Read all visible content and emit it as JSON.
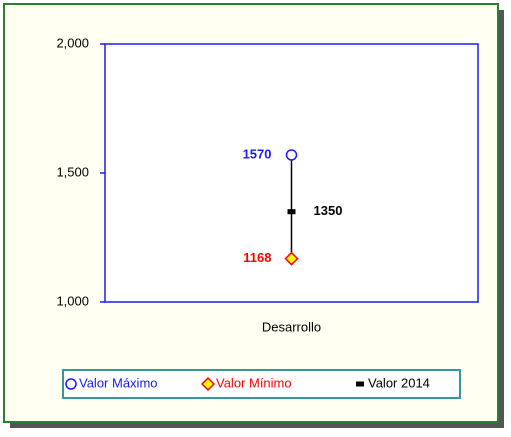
{
  "chart_data": {
    "type": "highlow",
    "categories": [
      "Desarrollo"
    ],
    "series": [
      {
        "name": "Valor Máximo",
        "color": "#1a1aff",
        "values": [
          1570
        ]
      },
      {
        "name": "Valor Mínimo",
        "color": "#ff0000",
        "values": [
          1168
        ]
      },
      {
        "name": "Valor 2014",
        "color": "#000000",
        "values": [
          1350
        ]
      }
    ],
    "ylim": [
      1000,
      2000
    ],
    "yticks": [
      {
        "value": 1000,
        "label": "1,000"
      },
      {
        "value": 1500,
        "label": "1,500"
      },
      {
        "value": 2000,
        "label": "2,000"
      }
    ],
    "legend": "bottom"
  }
}
